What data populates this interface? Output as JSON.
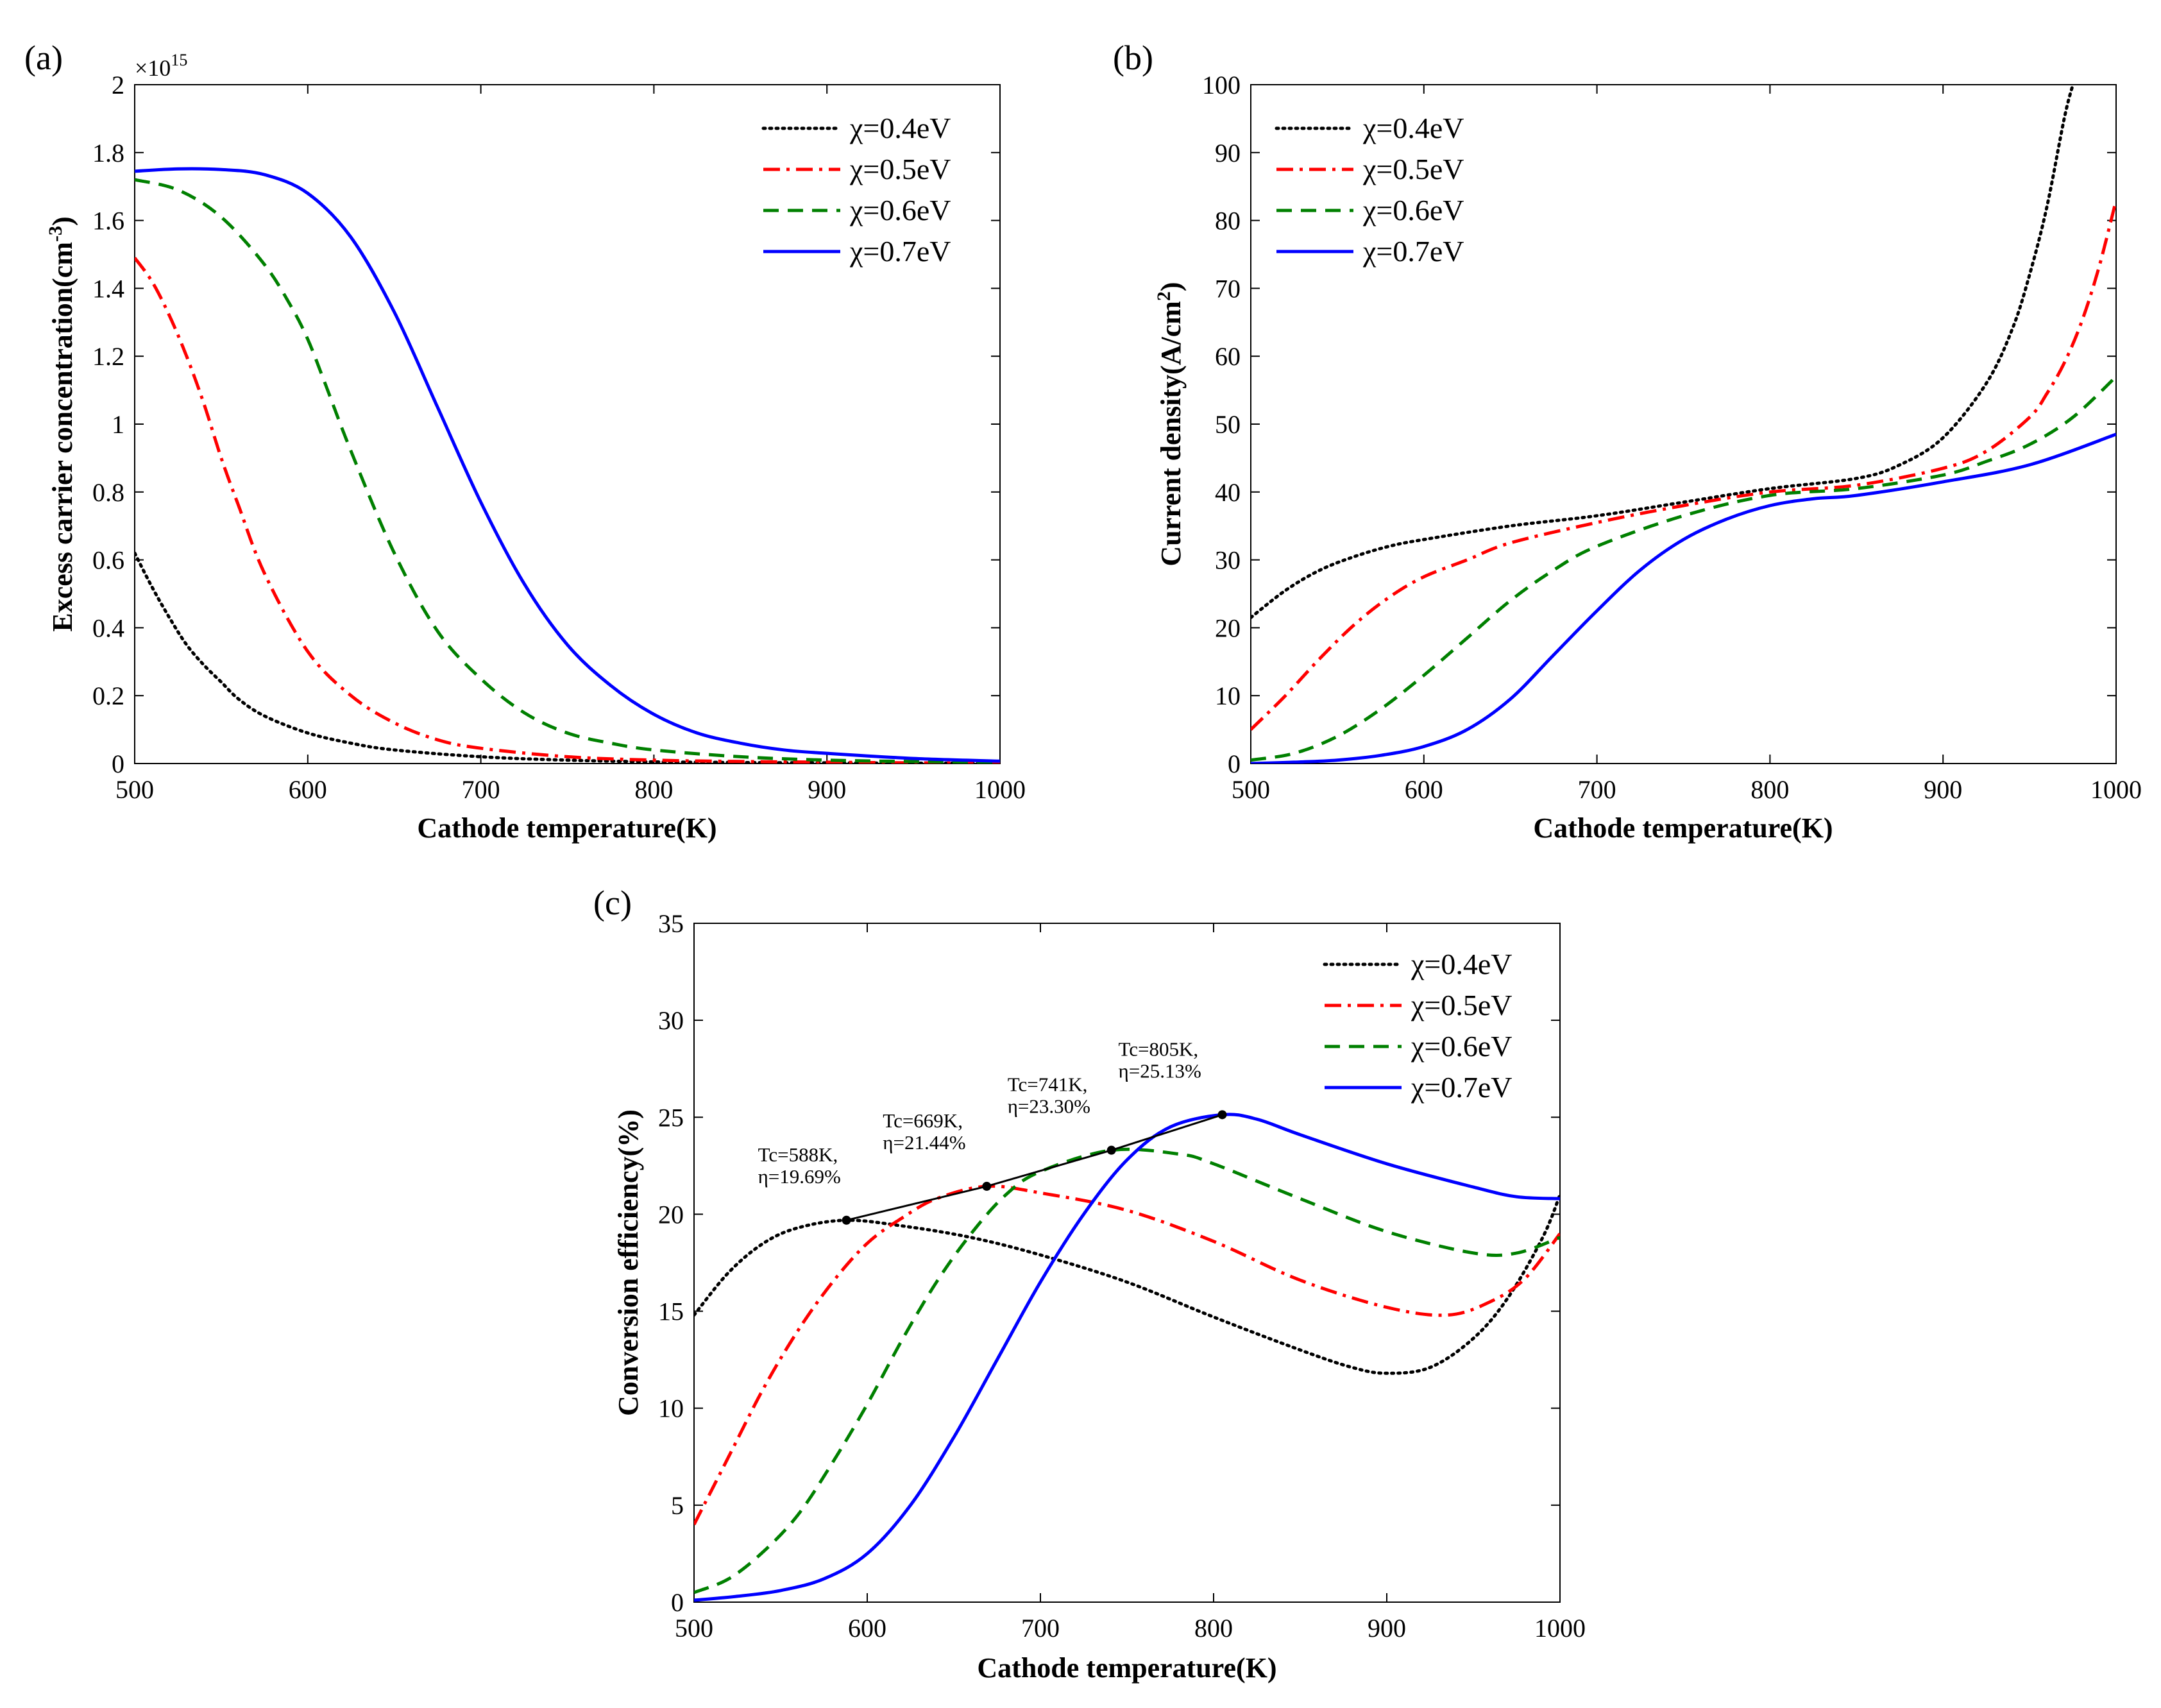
{
  "figure": {
    "panels": [
      {
        "id": "a",
        "panel_label": "(a)",
        "multiplier": "×10",
        "multiplier_exp": "15",
        "xlabel": "Cathode temperature(K)",
        "ylabel": "Excess carrier concentration(cm",
        "ylabel_exp": "-3",
        "ylabel_close": ")",
        "xticks": [
          "500",
          "600",
          "700",
          "800",
          "900",
          "1000"
        ],
        "yticks": [
          "0",
          "0.2",
          "0.4",
          "0.6",
          "0.8",
          "1",
          "1.2",
          "1.4",
          "1.6",
          "1.8",
          "2"
        ],
        "legend": [
          "χ=0.4eV",
          "χ=0.5eV",
          "χ=0.6eV",
          "χ=0.7eV"
        ]
      },
      {
        "id": "b",
        "panel_label": "(b)",
        "xlabel": "Cathode temperature(K)",
        "ylabel": "Current density(A/cm",
        "ylabel_exp": "2",
        "ylabel_close": ")",
        "xticks": [
          "500",
          "600",
          "700",
          "800",
          "900",
          "1000"
        ],
        "yticks": [
          "0",
          "10",
          "20",
          "30",
          "40",
          "50",
          "60",
          "70",
          "80",
          "90",
          "100"
        ],
        "legend": [
          "χ=0.4eV",
          "χ=0.5eV",
          "χ=0.6eV",
          "χ=0.7eV"
        ]
      },
      {
        "id": "c",
        "panel_label": "(c)",
        "xlabel": "Cathode temperature(K)",
        "ylabel": "Conversion efficiency(%)",
        "xticks": [
          "500",
          "600",
          "700",
          "800",
          "900",
          "1000"
        ],
        "yticks": [
          "0",
          "5",
          "10",
          "15",
          "20",
          "25",
          "30",
          "35"
        ],
        "legend": [
          "χ=0.4eV",
          "χ=0.5eV",
          "χ=0.6eV",
          "χ=0.7eV"
        ],
        "annotations": [
          {
            "line1": "Tc=588K,",
            "line2": "η=19.69%"
          },
          {
            "line1": "Tc=669K,",
            "line2": "η=21.44%"
          },
          {
            "line1": "Tc=741K,",
            "line2": "η=23.30%"
          },
          {
            "line1": "Tc=805K,",
            "line2": "η=25.13%"
          }
        ]
      }
    ]
  },
  "chart_data": [
    {
      "type": "line",
      "panel": "(a)",
      "xlabel": "Cathode temperature(K)",
      "ylabel": "Excess carrier concentration(cm^-3)",
      "y_multiplier": "1e15",
      "xlim": [
        500,
        1000
      ],
      "ylim": [
        0,
        2
      ],
      "grid": false,
      "legend_position": "top-right",
      "series": [
        {
          "name": "χ=0.4eV",
          "color": "#000000",
          "style": "dotted",
          "x": [
            500,
            510,
            520,
            530,
            540,
            550,
            560,
            575,
            600,
            625,
            650,
            700,
            750,
            800,
            850,
            900,
            950,
            1000
          ],
          "y": [
            0.62,
            0.52,
            0.43,
            0.35,
            0.29,
            0.24,
            0.19,
            0.14,
            0.09,
            0.06,
            0.04,
            0.02,
            0.01,
            0.005,
            0.003,
            0.002,
            0.001,
            0.001
          ]
        },
        {
          "name": "χ=0.5eV",
          "color": "#ff0000",
          "style": "dashdot",
          "x": [
            500,
            510,
            520,
            530,
            540,
            550,
            560,
            575,
            600,
            625,
            650,
            675,
            700,
            750,
            800,
            850,
            900,
            950,
            1000
          ],
          "y": [
            1.49,
            1.42,
            1.32,
            1.2,
            1.06,
            0.9,
            0.76,
            0.56,
            0.33,
            0.2,
            0.12,
            0.07,
            0.045,
            0.02,
            0.01,
            0.006,
            0.004,
            0.002,
            0.001
          ]
        },
        {
          "name": "χ=0.6eV",
          "color": "#008000",
          "style": "dashed",
          "x": [
            500,
            525,
            550,
            575,
            590,
            600,
            610,
            625,
            650,
            675,
            700,
            725,
            750,
            775,
            800,
            850,
            900,
            950,
            1000
          ],
          "y": [
            1.72,
            1.69,
            1.61,
            1.47,
            1.35,
            1.25,
            1.12,
            0.92,
            0.62,
            0.39,
            0.25,
            0.15,
            0.09,
            0.06,
            0.04,
            0.02,
            0.01,
            0.006,
            0.004
          ]
        },
        {
          "name": "χ=0.7eV",
          "color": "#0000ff",
          "style": "solid",
          "x": [
            500,
            525,
            550,
            575,
            600,
            625,
            650,
            675,
            700,
            725,
            750,
            775,
            800,
            825,
            850,
            875,
            900,
            950,
            1000
          ],
          "y": [
            1.745,
            1.752,
            1.75,
            1.735,
            1.68,
            1.55,
            1.33,
            1.05,
            0.77,
            0.53,
            0.35,
            0.23,
            0.145,
            0.09,
            0.06,
            0.04,
            0.03,
            0.015,
            0.007
          ]
        }
      ]
    },
    {
      "type": "line",
      "panel": "(b)",
      "xlabel": "Cathode temperature(K)",
      "ylabel": "Current density(A/cm^2)",
      "xlim": [
        500,
        1000
      ],
      "ylim": [
        0,
        100
      ],
      "grid": false,
      "legend_position": "top-left",
      "series": [
        {
          "name": "χ=0.4eV",
          "color": "#000000",
          "style": "dotted",
          "x": [
            500,
            520,
            540,
            560,
            580,
            600,
            650,
            700,
            750,
            800,
            850,
            875,
            900,
            925,
            940,
            950,
            960,
            970,
            975
          ],
          "y": [
            21.5,
            25.5,
            28.5,
            30.5,
            32,
            33,
            35,
            36.5,
            38.5,
            40.5,
            42,
            44,
            48,
            56,
            64,
            72,
            82,
            95,
            100
          ]
        },
        {
          "name": "χ=0.5eV",
          "color": "#ff0000",
          "style": "dashdot",
          "x": [
            500,
            520,
            540,
            560,
            580,
            600,
            625,
            650,
            700,
            750,
            800,
            850,
            900,
            925,
            950,
            960,
            970,
            980,
            990,
            1000
          ],
          "y": [
            5,
            10,
            15.5,
            20.5,
            24.5,
            27.5,
            30,
            32.5,
            35.5,
            38,
            40,
            41,
            43.5,
            46,
            51,
            54.5,
            59,
            65,
            73,
            83
          ]
        },
        {
          "name": "χ=0.6eV",
          "color": "#008000",
          "style": "dashed",
          "x": [
            500,
            525,
            550,
            575,
            600,
            625,
            650,
            675,
            700,
            750,
            800,
            850,
            900,
            925,
            950,
            975,
            1000
          ],
          "y": [
            0.5,
            1.5,
            4,
            8,
            13,
            18.5,
            24,
            28.5,
            32,
            36.5,
            39.5,
            40.5,
            42.5,
            44.5,
            47,
            51,
            57
          ]
        },
        {
          "name": "χ=0.7eV",
          "color": "#0000ff",
          "style": "solid",
          "x": [
            500,
            525,
            550,
            575,
            600,
            625,
            650,
            675,
            700,
            725,
            750,
            775,
            800,
            825,
            850,
            900,
            950,
            1000
          ],
          "y": [
            0,
            0.2,
            0.5,
            1.2,
            2.5,
            5,
            9.5,
            16,
            22.5,
            28.5,
            33,
            36,
            38,
            39,
            39.5,
            41.5,
            44,
            48.5
          ]
        }
      ]
    },
    {
      "type": "line",
      "panel": "(c)",
      "xlabel": "Cathode temperature(K)",
      "ylabel": "Conversion efficiency(%)",
      "xlim": [
        500,
        1000
      ],
      "ylim": [
        0,
        35
      ],
      "grid": false,
      "legend_position": "top-right",
      "series": [
        {
          "name": "χ=0.4eV",
          "color": "#000000",
          "style": "dotted",
          "x": [
            500,
            520,
            540,
            560,
            588,
            620,
            660,
            700,
            750,
            800,
            850,
            880,
            900,
            925,
            950,
            970,
            990,
            1000
          ],
          "y": [
            14.8,
            17,
            18.5,
            19.3,
            19.69,
            19.4,
            18.8,
            17.9,
            16.5,
            14.7,
            13,
            12.1,
            11.8,
            12.1,
            13.6,
            15.7,
            18.8,
            21
          ]
        },
        {
          "name": "χ=0.5eV",
          "color": "#ff0000",
          "style": "dashdot",
          "x": [
            500,
            520,
            540,
            560,
            580,
            600,
            620,
            640,
            669,
            700,
            750,
            800,
            850,
            900,
            935,
            960,
            980,
            1000
          ],
          "y": [
            4,
            7.5,
            11,
            14,
            16.5,
            18.5,
            19.8,
            20.8,
            21.44,
            21.1,
            20.2,
            18.6,
            16.6,
            15.2,
            14.8,
            15.5,
            16.7,
            19
          ]
        },
        {
          "name": "χ=0.6eV",
          "color": "#008000",
          "style": "dashed",
          "x": [
            500,
            520,
            540,
            560,
            580,
            600,
            620,
            640,
            660,
            680,
            700,
            741,
            780,
            800,
            850,
            900,
            950,
            975,
            1000
          ],
          "y": [
            0.5,
            1.2,
            2.6,
            4.5,
            7.2,
            10.2,
            13.5,
            16.5,
            19,
            21,
            22.2,
            23.3,
            23.1,
            22.6,
            20.8,
            19.1,
            18,
            18,
            18.8
          ]
        },
        {
          "name": "χ=0.7eV",
          "color": "#0000ff",
          "style": "solid",
          "x": [
            500,
            525,
            550,
            575,
            600,
            625,
            650,
            675,
            700,
            725,
            750,
            775,
            805,
            825,
            850,
            900,
            950,
            975,
            1000
          ],
          "y": [
            0.1,
            0.3,
            0.6,
            1.2,
            2.5,
            5,
            8.5,
            12.5,
            16.5,
            20,
            22.8,
            24.5,
            25.13,
            24.9,
            24.1,
            22.6,
            21.4,
            20.9,
            20.8
          ]
        }
      ],
      "optimum_points": {
        "x": [
          588,
          669,
          741,
          805
        ],
        "y": [
          19.69,
          21.44,
          23.3,
          25.13
        ]
      }
    }
  ]
}
